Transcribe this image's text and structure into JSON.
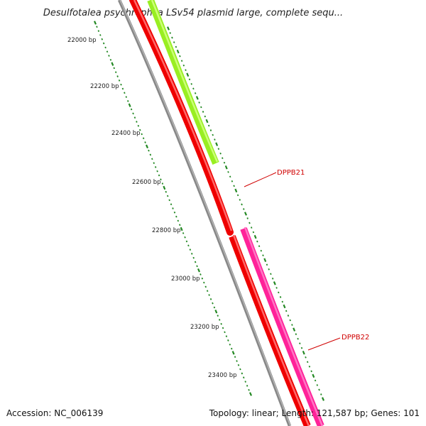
{
  "title": "Desulfotalea psychrophila LSv54 plasmid large, complete sequ...",
  "footer": {
    "accession": "Accession: NC_006139",
    "summary": "Topology: linear; Length: 121,587 bp; Genes: 101"
  },
  "ticks": [
    "22000 bp",
    "22200 bp",
    "22400 bp",
    "22600 bp",
    "22800 bp",
    "23000 bp",
    "23200 bp",
    "23400 bp"
  ],
  "genes": [
    {
      "name": "DPPB21",
      "color": "#ee0000"
    },
    {
      "name": "DPPB22",
      "color": "#ee0000"
    }
  ],
  "colors": {
    "backbone": "#888888",
    "gene_forward_a": "#99ee22",
    "gene_forward_b": "#ff2299",
    "gene_reverse": "#ee0000",
    "tick_mark": "#228822",
    "label": "#d00000"
  }
}
